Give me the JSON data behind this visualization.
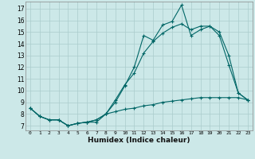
{
  "xlabel": "Humidex (Indice chaleur)",
  "background_color": "#cce8e8",
  "grid_color": "#aacccc",
  "line_color": "#006666",
  "xlim": [
    -0.5,
    23.5
  ],
  "ylim": [
    6.6,
    17.6
  ],
  "xticks": [
    0,
    1,
    2,
    3,
    4,
    5,
    6,
    7,
    8,
    9,
    10,
    11,
    12,
    13,
    14,
    15,
    16,
    17,
    18,
    19,
    20,
    21,
    22,
    23
  ],
  "yticks": [
    7,
    8,
    9,
    10,
    11,
    12,
    13,
    14,
    15,
    16,
    17
  ],
  "line1_y": [
    8.5,
    7.8,
    7.5,
    7.5,
    7.0,
    7.2,
    7.3,
    7.3,
    8.0,
    9.0,
    10.4,
    12.0,
    14.7,
    14.3,
    15.6,
    15.9,
    17.3,
    14.7,
    15.2,
    15.5,
    14.7,
    12.2,
    9.8,
    9.2
  ],
  "line2_y": [
    8.5,
    7.8,
    7.5,
    7.5,
    7.0,
    7.2,
    7.3,
    7.5,
    8.0,
    9.2,
    10.5,
    11.5,
    13.2,
    14.2,
    14.9,
    15.4,
    15.7,
    15.2,
    15.5,
    15.5,
    15.0,
    13.0,
    9.8,
    9.2
  ],
  "line3_y": [
    8.5,
    7.8,
    7.5,
    7.5,
    7.0,
    7.2,
    7.3,
    7.5,
    8.0,
    8.2,
    8.4,
    8.5,
    8.7,
    8.8,
    9.0,
    9.1,
    9.2,
    9.3,
    9.4,
    9.4,
    9.4,
    9.4,
    9.4,
    9.2
  ]
}
